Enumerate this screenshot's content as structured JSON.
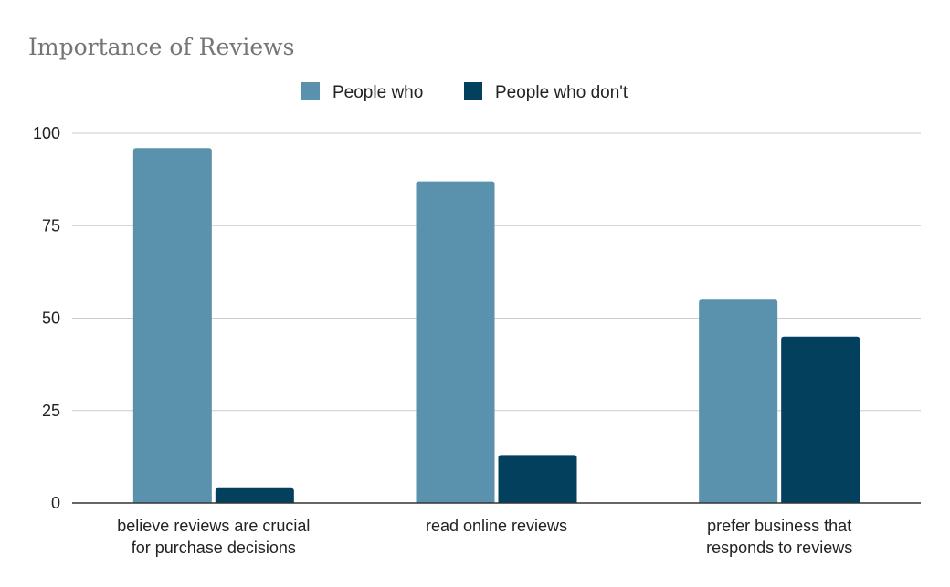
{
  "chart_data": {
    "type": "bar",
    "title": "Importance of Reviews",
    "categories": [
      [
        "believe reviews are crucial",
        "for purchase decisions"
      ],
      [
        "read online reviews"
      ],
      [
        "prefer business that",
        "responds to reviews"
      ]
    ],
    "series": [
      {
        "name": "People who",
        "color": "#5a91ad",
        "values": [
          96,
          87,
          55
        ]
      },
      {
        "name": "People who don't",
        "color": "#02405e",
        "values": [
          4,
          13,
          45
        ]
      }
    ],
    "yticks": [
      0,
      25,
      50,
      75,
      100
    ],
    "ylim": [
      0,
      100
    ],
    "grid": true,
    "legend_position": "top-center"
  }
}
